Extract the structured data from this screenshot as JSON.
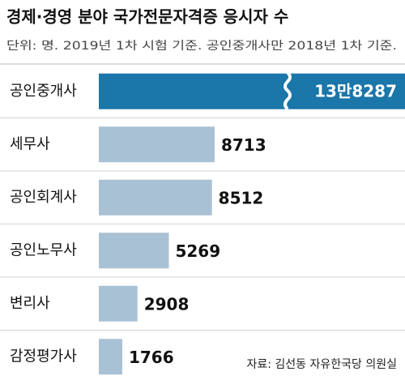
{
  "chart_data": {
    "type": "bar",
    "orientation": "horizontal",
    "title": "경제·경영 분야 국가전문자격증 응시자 수",
    "subtitle": "단위: 명. 2019년 1차 시험 기준. 공인중개사만 2018년 1차 기준.",
    "source": "자료: 김선동 자유한국당 의원실",
    "categories": [
      "공인중개사",
      "세무사",
      "공인회계사",
      "공인노무사",
      "변리사",
      "감정평가사"
    ],
    "values": [
      138287,
      8713,
      8512,
      5269,
      2908,
      1766
    ],
    "value_labels": [
      "13만8287",
      "8713",
      "8512",
      "5269",
      "2908",
      "1766"
    ],
    "color": "#a9c1d4",
    "highlight_color": "#1b76a9"
  }
}
